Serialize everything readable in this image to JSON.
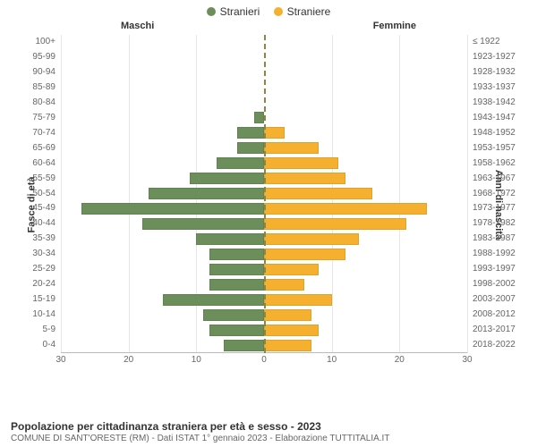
{
  "legend": {
    "male": {
      "label": "Stranieri",
      "color": "#6b8e5a"
    },
    "female": {
      "label": "Straniere",
      "color": "#f5b030"
    }
  },
  "subtitles": {
    "male": "Maschi",
    "female": "Femmine"
  },
  "axes": {
    "y_left_title": "Fasce di età",
    "y_right_title": "Anni di nascita",
    "x_max": 30,
    "x_ticks": [
      30,
      20,
      10,
      0,
      10,
      20,
      30
    ],
    "x_tick_positions_pct": [
      0,
      16.67,
      33.33,
      50,
      66.67,
      83.33,
      100
    ],
    "grid_positions_pct": [
      0,
      16.67,
      33.33,
      66.67,
      83.33,
      100
    ]
  },
  "chart": {
    "type": "population-pyramid",
    "bar_color_male": "#6b8e5a",
    "bar_color_female": "#f5b030",
    "grid_color": "#e6e6e6",
    "background_color": "#ffffff",
    "label_fontsize": 10,
    "groups": [
      {
        "age": "100+",
        "birth": "≤ 1922",
        "m": 0,
        "f": 0
      },
      {
        "age": "95-99",
        "birth": "1923-1927",
        "m": 0,
        "f": 0
      },
      {
        "age": "90-94",
        "birth": "1928-1932",
        "m": 0,
        "f": 0
      },
      {
        "age": "85-89",
        "birth": "1933-1937",
        "m": 0,
        "f": 0
      },
      {
        "age": "80-84",
        "birth": "1938-1942",
        "m": 0,
        "f": 0
      },
      {
        "age": "75-79",
        "birth": "1943-1947",
        "m": 1.5,
        "f": 0
      },
      {
        "age": "70-74",
        "birth": "1948-1952",
        "m": 4,
        "f": 3
      },
      {
        "age": "65-69",
        "birth": "1953-1957",
        "m": 4,
        "f": 8
      },
      {
        "age": "60-64",
        "birth": "1958-1962",
        "m": 7,
        "f": 11
      },
      {
        "age": "55-59",
        "birth": "1963-1967",
        "m": 11,
        "f": 12
      },
      {
        "age": "50-54",
        "birth": "1968-1972",
        "m": 17,
        "f": 16
      },
      {
        "age": "45-49",
        "birth": "1973-1977",
        "m": 27,
        "f": 24
      },
      {
        "age": "40-44",
        "birth": "1978-1982",
        "m": 18,
        "f": 21
      },
      {
        "age": "35-39",
        "birth": "1983-1987",
        "m": 10,
        "f": 14
      },
      {
        "age": "30-34",
        "birth": "1988-1992",
        "m": 8,
        "f": 12
      },
      {
        "age": "25-29",
        "birth": "1993-1997",
        "m": 8,
        "f": 8
      },
      {
        "age": "20-24",
        "birth": "1998-2002",
        "m": 8,
        "f": 6
      },
      {
        "age": "15-19",
        "birth": "2003-2007",
        "m": 15,
        "f": 10
      },
      {
        "age": "10-14",
        "birth": "2008-2012",
        "m": 9,
        "f": 7
      },
      {
        "age": "5-9",
        "birth": "2013-2017",
        "m": 8,
        "f": 8
      },
      {
        "age": "0-4",
        "birth": "2018-2022",
        "m": 6,
        "f": 7
      }
    ]
  },
  "footer": {
    "title": "Popolazione per cittadinanza straniera per età e sesso - 2023",
    "subtitle": "COMUNE DI SANT'ORESTE (RM) - Dati ISTAT 1° gennaio 2023 - Elaborazione TUTTITALIA.IT"
  }
}
